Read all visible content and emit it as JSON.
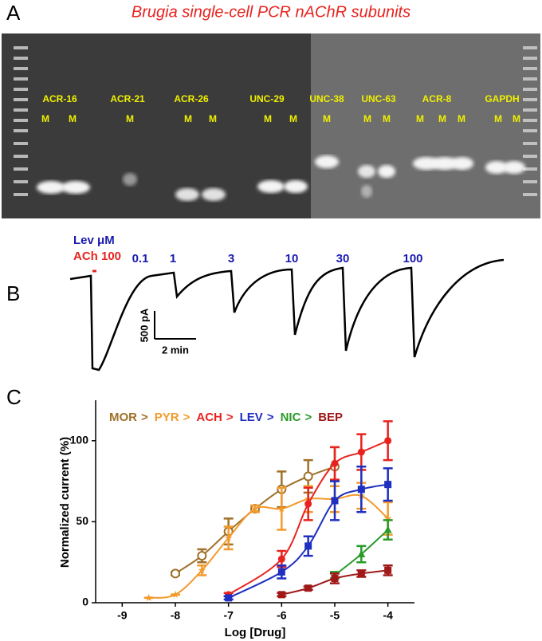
{
  "panel_a": {
    "label": "A",
    "title": "Brugia single-cell PCR nAChR subunits",
    "genes": [
      {
        "label": "ACR-16",
        "markers": [
          "M",
          "M"
        ]
      },
      {
        "label": "ACR-21",
        "markers": [
          "M"
        ]
      },
      {
        "label": "ACR-26",
        "markers": [
          "M",
          "M"
        ]
      },
      {
        "label": "UNC-29",
        "markers": [
          "M",
          "M"
        ]
      },
      {
        "label": "UNC-38",
        "markers": [
          "M"
        ]
      },
      {
        "label": "UNC-63",
        "markers": [
          "M",
          "M"
        ]
      },
      {
        "label": "ACR-8",
        "markers": [
          "M",
          "M",
          "M"
        ]
      },
      {
        "label": "GAPDH",
        "markers": [
          "M",
          "M"
        ]
      }
    ]
  },
  "panel_b": {
    "label": "B",
    "lev_label": "Lev μM",
    "ach_label": "ACh 100",
    "doses": [
      "0.1",
      "1",
      "3",
      "10",
      "30",
      "100"
    ],
    "scale_current": "500 pA",
    "scale_time": "2 min"
  },
  "panel_c": {
    "label": "C"
  },
  "chart_data": {
    "type": "line",
    "y_label": "Normalized current (%)",
    "x_label": "Log [Drug]",
    "legend_separator": ">",
    "xlim": [
      -9.5,
      -3.5
    ],
    "xticks": [
      -9,
      -8,
      -7,
      -6,
      -5,
      -4
    ],
    "ylim": [
      0,
      125
    ],
    "yticks": [
      0,
      50,
      100
    ],
    "series": [
      {
        "name": "MOR",
        "color": "#a0702a",
        "marker": "open-circle",
        "x": [
          -8,
          -7.5,
          -7,
          -6.5,
          -6,
          -5.5,
          -5
        ],
        "values": [
          18,
          29,
          44,
          58,
          70,
          78,
          84
        ],
        "errors": [
          1,
          4,
          8,
          2,
          11,
          10,
          12
        ]
      },
      {
        "name": "PYR",
        "color": "#f39a2c",
        "marker": "star",
        "x": [
          -8.5,
          -8,
          -7.5,
          -7,
          -6.5,
          -6,
          -5.5,
          -5,
          -4.5,
          -4
        ],
        "values": [
          3,
          5,
          20,
          40,
          58,
          58,
          64,
          64,
          66,
          52
        ],
        "errors": [
          0,
          0,
          3,
          7,
          2,
          13,
          8,
          8,
          8,
          10
        ]
      },
      {
        "name": "ACH",
        "color": "#e8231f",
        "marker": "circle",
        "x": [
          -7,
          -6,
          -5.5,
          -5,
          -4.5,
          -4
        ],
        "values": [
          5,
          27,
          61,
          86,
          93,
          100
        ],
        "errors": [
          1,
          5,
          10,
          10,
          11,
          12
        ]
      },
      {
        "name": "LEV",
        "color": "#1f2fbf",
        "marker": "square",
        "x": [
          -7,
          -6,
          -5.5,
          -5,
          -4.5,
          -4
        ],
        "values": [
          3,
          19,
          35,
          63,
          70,
          73
        ],
        "errors": [
          1,
          4,
          6,
          12,
          14,
          10
        ]
      },
      {
        "name": "NIC",
        "color": "#2a9a2a",
        "marker": "triangle",
        "x": [
          -5,
          -4.5,
          -4
        ],
        "values": [
          17,
          30,
          45
        ],
        "errors": [
          2,
          5,
          6
        ]
      },
      {
        "name": "BEP",
        "color": "#a01818",
        "marker": "square",
        "x": [
          -6,
          -5.5,
          -5,
          -4.5,
          -4
        ],
        "values": [
          5,
          9,
          15,
          18,
          20
        ],
        "errors": [
          1,
          1,
          3,
          2,
          3
        ]
      }
    ]
  }
}
